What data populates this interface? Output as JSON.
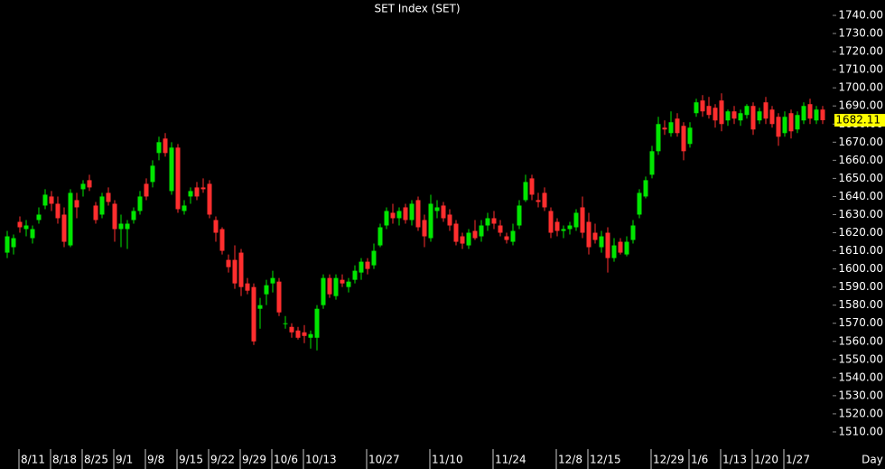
{
  "chart_data": {
    "type": "candlestick",
    "title": "SET Index (SET)",
    "x_label": "Day",
    "up_color": "#00e600",
    "down_color": "#ff2e2e",
    "ylim": [
      1503,
      1748.5
    ],
    "yticks": [
      {
        "value": 1740,
        "label": "1740.00"
      },
      {
        "value": 1730,
        "label": "1730.00"
      },
      {
        "value": 1720,
        "label": "1720.00"
      },
      {
        "value": 1710,
        "label": "1710.00"
      },
      {
        "value": 1700,
        "label": "1700.00"
      },
      {
        "value": 1690,
        "label": "1690.00"
      },
      {
        "value": 1680,
        "label": "1680.00"
      },
      {
        "value": 1670,
        "label": "1670.00"
      },
      {
        "value": 1660,
        "label": "1660.00"
      },
      {
        "value": 1650,
        "label": "1650.00"
      },
      {
        "value": 1640,
        "label": "1640.00"
      },
      {
        "value": 1630,
        "label": "1630.00"
      },
      {
        "value": 1620,
        "label": "1620.00"
      },
      {
        "value": 1610,
        "label": "1610.00"
      },
      {
        "value": 1600,
        "label": "1600.00"
      },
      {
        "value": 1590,
        "label": "1590.00"
      },
      {
        "value": 1580,
        "label": "1580.00"
      },
      {
        "value": 1570,
        "label": "1570.00"
      },
      {
        "value": 1560,
        "label": "1560.00"
      },
      {
        "value": 1550,
        "label": "1550.00"
      },
      {
        "value": 1540,
        "label": "1540.00"
      },
      {
        "value": 1530,
        "label": "1530.00"
      },
      {
        "value": 1520,
        "label": "1520.00"
      },
      {
        "value": 1510,
        "label": "1510.00"
      }
    ],
    "last_price": 1682.11,
    "categories": [
      null,
      null,
      "8/11",
      null,
      null,
      null,
      null,
      "8/18",
      null,
      null,
      null,
      null,
      "8/25",
      null,
      null,
      null,
      null,
      "9/1",
      null,
      null,
      null,
      null,
      "9/8",
      null,
      null,
      null,
      null,
      "9/15",
      null,
      null,
      null,
      null,
      "9/22",
      null,
      null,
      null,
      null,
      "9/29",
      null,
      null,
      null,
      null,
      "10/6",
      null,
      null,
      null,
      null,
      "10/13",
      null,
      null,
      null,
      null,
      null,
      null,
      null,
      null,
      null,
      "10/27",
      null,
      null,
      null,
      null,
      null,
      null,
      null,
      null,
      null,
      "11/10",
      null,
      null,
      null,
      null,
      null,
      null,
      null,
      null,
      null,
      "11/24",
      null,
      null,
      null,
      null,
      null,
      null,
      null,
      null,
      null,
      "12/8",
      null,
      null,
      null,
      null,
      "12/15",
      null,
      null,
      null,
      null,
      null,
      null,
      null,
      null,
      null,
      "12/29",
      null,
      null,
      null,
      null,
      null,
      "1/6",
      null,
      null,
      null,
      null,
      "1/13",
      null,
      null,
      null,
      null,
      "1/20",
      null,
      null,
      null,
      null,
      "1/27",
      null,
      null,
      null,
      null,
      null,
      null
    ],
    "candles": [
      [
        1609,
        1621,
        1606,
        1618
      ],
      [
        1612,
        1619,
        1608,
        1617
      ],
      [
        1626,
        1629,
        1620,
        1623
      ],
      [
        1622,
        1627,
        1618,
        1624
      ],
      [
        1617,
        1624,
        1614,
        1622
      ],
      [
        1627,
        1634,
        1625,
        1630
      ],
      [
        1635,
        1644,
        1633,
        1641
      ],
      [
        1640,
        1643,
        1632,
        1636
      ],
      [
        1636,
        1640,
        1625,
        1628
      ],
      [
        1630,
        1634,
        1612,
        1615
      ],
      [
        1613,
        1644,
        1612,
        1642
      ],
      [
        1638,
        1642,
        1628,
        1634
      ],
      [
        1644,
        1649,
        1640,
        1647
      ],
      [
        1649,
        1652,
        1643,
        1645
      ],
      [
        1635,
        1637,
        1625,
        1627
      ],
      [
        1630,
        1642,
        1628,
        1640
      ],
      [
        1642,
        1645,
        1635,
        1637
      ],
      [
        1636,
        1638,
        1615,
        1622
      ],
      [
        1622,
        1630,
        1612,
        1625
      ],
      [
        1622,
        1627,
        1611,
        1625
      ],
      [
        1627,
        1634,
        1625,
        1632
      ],
      [
        1632,
        1643,
        1630,
        1640
      ],
      [
        1647,
        1650,
        1638,
        1640
      ],
      [
        1648,
        1660,
        1645,
        1657
      ],
      [
        1664,
        1673,
        1660,
        1670
      ],
      [
        1672,
        1675,
        1662,
        1664
      ],
      [
        1643,
        1670,
        1641,
        1667
      ],
      [
        1667,
        1669,
        1631,
        1633
      ],
      [
        1632,
        1638,
        1630,
        1635
      ],
      [
        1640,
        1645,
        1636,
        1643
      ],
      [
        1645,
        1648,
        1638,
        1640
      ],
      [
        1645,
        1650,
        1642,
        1644
      ],
      [
        1647,
        1649,
        1628,
        1630
      ],
      [
        1627,
        1629,
        1615,
        1620
      ],
      [
        1622,
        1623,
        1608,
        1610
      ],
      [
        1605,
        1608,
        1598,
        1601
      ],
      [
        1605,
        1613,
        1589,
        1592
      ],
      [
        1609,
        1611,
        1585,
        1590
      ],
      [
        1592,
        1595,
        1586,
        1588
      ],
      [
        1590,
        1592,
        1558,
        1560
      ],
      [
        1578,
        1584,
        1567,
        1580
      ],
      [
        1586,
        1594,
        1580,
        1591
      ],
      [
        1592,
        1599,
        1587,
        1595
      ],
      [
        1593,
        1595,
        1574,
        1576
      ],
      [
        1570,
        1574,
        1567,
        1570
      ],
      [
        1568,
        1570,
        1562,
        1565
      ],
      [
        1566,
        1568,
        1561,
        1562
      ],
      [
        1565,
        1569,
        1559,
        1563
      ],
      [
        1562,
        1566,
        1556,
        1564
      ],
      [
        1562,
        1580,
        1555,
        1578
      ],
      [
        1580,
        1597,
        1578,
        1595
      ],
      [
        1595,
        1597,
        1584,
        1586
      ],
      [
        1585,
        1597,
        1583,
        1595
      ],
      [
        1594,
        1597,
        1590,
        1592
      ],
      [
        1590,
        1595,
        1587,
        1593
      ],
      [
        1594,
        1602,
        1592,
        1599
      ],
      [
        1598,
        1606,
        1594,
        1604
      ],
      [
        1604,
        1606,
        1597,
        1600
      ],
      [
        1602,
        1614,
        1600,
        1610
      ],
      [
        1613,
        1625,
        1612,
        1623
      ],
      [
        1624,
        1634,
        1622,
        1632
      ],
      [
        1631,
        1636,
        1625,
        1628
      ],
      [
        1628,
        1634,
        1624,
        1632
      ],
      [
        1634,
        1636,
        1625,
        1627
      ],
      [
        1627,
        1638,
        1624,
        1636
      ],
      [
        1638,
        1640,
        1621,
        1623
      ],
      [
        1627,
        1630,
        1612,
        1618
      ],
      [
        1617,
        1641,
        1615,
        1636
      ],
      [
        1632,
        1638,
        1628,
        1634
      ],
      [
        1635,
        1637,
        1626,
        1628
      ],
      [
        1630,
        1633,
        1621,
        1624
      ],
      [
        1625,
        1627,
        1613,
        1615
      ],
      [
        1618,
        1620,
        1611,
        1614
      ],
      [
        1613,
        1622,
        1611,
        1620
      ],
      [
        1621,
        1627,
        1616,
        1617
      ],
      [
        1618,
        1627,
        1615,
        1624
      ],
      [
        1624,
        1631,
        1621,
        1628
      ],
      [
        1628,
        1632,
        1622,
        1625
      ],
      [
        1624,
        1627,
        1618,
        1620
      ],
      [
        1618,
        1620,
        1614,
        1616
      ],
      [
        1615,
        1625,
        1613,
        1621
      ],
      [
        1624,
        1638,
        1622,
        1635
      ],
      [
        1638,
        1652,
        1637,
        1648
      ],
      [
        1650,
        1652,
        1638,
        1641
      ],
      [
        1638,
        1642,
        1634,
        1637
      ],
      [
        1642,
        1645,
        1632,
        1634
      ],
      [
        1632,
        1634,
        1617,
        1620
      ],
      [
        1626,
        1628,
        1618,
        1621
      ],
      [
        1621,
        1624,
        1617,
        1622
      ],
      [
        1622,
        1626,
        1619,
        1624
      ],
      [
        1623,
        1633,
        1621,
        1631
      ],
      [
        1634,
        1640,
        1617,
        1620
      ],
      [
        1626,
        1631,
        1608,
        1612
      ],
      [
        1620,
        1625,
        1614,
        1616
      ],
      [
        1612,
        1621,
        1609,
        1618
      ],
      [
        1620,
        1623,
        1598,
        1606
      ],
      [
        1606,
        1617,
        1604,
        1613
      ],
      [
        1615,
        1617,
        1608,
        1609
      ],
      [
        1608,
        1618,
        1607,
        1615
      ],
      [
        1616,
        1627,
        1614,
        1624
      ],
      [
        1630,
        1644,
        1628,
        1642
      ],
      [
        1640,
        1651,
        1639,
        1649
      ],
      [
        1652,
        1668,
        1650,
        1665
      ],
      [
        1665,
        1684,
        1663,
        1680
      ],
      [
        1678,
        1682,
        1674,
        1677
      ],
      [
        1675,
        1687,
        1673,
        1681
      ],
      [
        1683,
        1686,
        1673,
        1675
      ],
      [
        1679,
        1681,
        1660,
        1665
      ],
      [
        1669,
        1681,
        1667,
        1678
      ],
      [
        1686,
        1694,
        1684,
        1692
      ],
      [
        1693,
        1696,
        1684,
        1687
      ],
      [
        1690,
        1695,
        1683,
        1685
      ],
      [
        1689,
        1691,
        1678,
        1682
      ],
      [
        1693,
        1697,
        1676,
        1680
      ],
      [
        1682,
        1688,
        1679,
        1687
      ],
      [
        1687,
        1690,
        1680,
        1683
      ],
      [
        1682,
        1688,
        1679,
        1686
      ],
      [
        1685,
        1691,
        1683,
        1690
      ],
      [
        1690,
        1692,
        1674,
        1677
      ],
      [
        1682,
        1689,
        1680,
        1687
      ],
      [
        1692,
        1695,
        1680,
        1683
      ],
      [
        1688,
        1690,
        1678,
        1680
      ],
      [
        1684,
        1686,
        1668,
        1673
      ],
      [
        1675,
        1687,
        1673,
        1684
      ],
      [
        1686,
        1688,
        1672,
        1676
      ],
      [
        1677,
        1687,
        1675,
        1685
      ],
      [
        1682,
        1692,
        1680,
        1690
      ],
      [
        1691,
        1694,
        1680,
        1683
      ],
      [
        1682,
        1690,
        1680,
        1688
      ],
      [
        1688,
        1690,
        1680,
        1682.11
      ]
    ]
  }
}
